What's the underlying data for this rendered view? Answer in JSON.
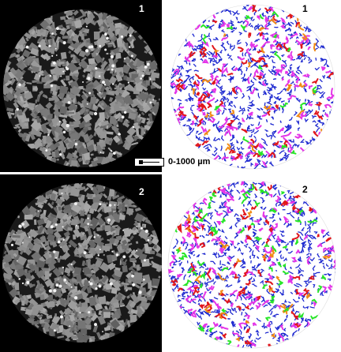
{
  "panels": [
    {
      "id": "ct-1",
      "kind": "ct",
      "label": "1"
    },
    {
      "id": "seg-1",
      "kind": "segmented",
      "label": "1"
    },
    {
      "id": "ct-2",
      "kind": "ct",
      "label": "2"
    },
    {
      "id": "seg-2",
      "kind": "segmented",
      "label": "2"
    }
  ],
  "scale_bar": {
    "label": "0-1000 µm"
  },
  "colors": {
    "background_ct": "#000000",
    "grain_gray": "#8c8c8c",
    "pore_blue": "#1f2ad0",
    "pore_magenta": "#e436e8",
    "pore_red": "#e0161c",
    "pore_orange": "#f08a16",
    "pore_green": "#28e628"
  }
}
